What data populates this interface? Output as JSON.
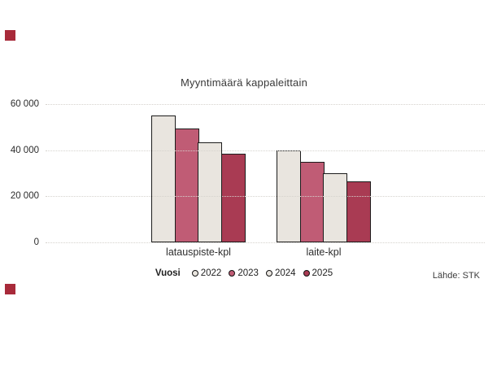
{
  "page": {
    "background": "#ffffff"
  },
  "brand_markers": {
    "color": "#a82a3a"
  },
  "chart_data": {
    "type": "bar",
    "title": "Myyntimäärä kappaleittain",
    "categories": [
      "latauspiste-kpl",
      "laite-kpl"
    ],
    "series": [
      {
        "name": "2022",
        "color": "#e9e5df",
        "values": [
          55000,
          40000
        ]
      },
      {
        "name": "2023",
        "color": "#c05c75",
        "values": [
          49500,
          35000
        ]
      },
      {
        "name": "2024",
        "color": "#e9e5df",
        "values": [
          43500,
          30000
        ]
      },
      {
        "name": "2025",
        "color": "#a93b53",
        "values": [
          38500,
          26500
        ]
      }
    ],
    "bar_outline_color": "#1c1c1c",
    "ylim": [
      0,
      60000
    ],
    "yticks": [
      0,
      20000,
      40000,
      60000
    ],
    "ytick_labels": [
      "0",
      "20 000",
      "40 000",
      "60 000"
    ],
    "grid": "horizontal-dotted",
    "gridline_color": "#d5d2cd",
    "legend_title": "Vuosi",
    "legend_position": "bottom-center",
    "source": "Lähde: STK"
  }
}
